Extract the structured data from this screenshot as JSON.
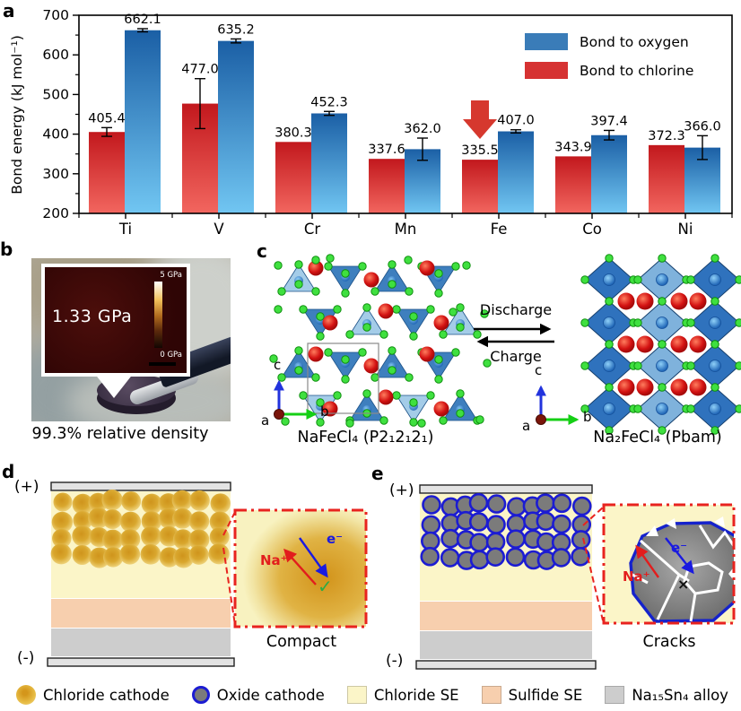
{
  "panel_letters": {
    "a": "a",
    "b": "b",
    "c": "c",
    "d": "d",
    "e": "e"
  },
  "chart_data": {
    "type": "bar",
    "categories": [
      "Ti",
      "V",
      "Cr",
      "Mn",
      "Fe",
      "Co",
      "Ni"
    ],
    "series": [
      {
        "name": "Bond to chlorine",
        "values": [
          405.4,
          477.0,
          380.3,
          337.6,
          335.5,
          343.9,
          372.3
        ],
        "errors": [
          11,
          63,
          0,
          0,
          0,
          0,
          0
        ],
        "gradient": [
          "#c2181d",
          "#f2665f"
        ]
      },
      {
        "name": "Bond to oxygen",
        "values": [
          662.1,
          635.2,
          452.3,
          362.0,
          407.0,
          397.4,
          366.0
        ],
        "errors": [
          4,
          5,
          5,
          28,
          4,
          12,
          30
        ],
        "gradient": [
          "#1b5fa5",
          "#71c6f2"
        ]
      }
    ],
    "legend": [
      {
        "label": "Bond to oxygen",
        "color": "#3a7cb8"
      },
      {
        "label": "Bond to chlorine",
        "color": "#d63232"
      }
    ],
    "ylabel": "Bond energy (kJ mol⁻¹)",
    "ylim": [
      200,
      700
    ],
    "yticks": [
      200,
      300,
      400,
      500,
      600,
      700
    ],
    "grid": false,
    "legend_position": "top-right",
    "annotation": {
      "type": "down-arrow",
      "category": "Fe",
      "series": "Bond to chlorine",
      "color": "#d6382e"
    }
  },
  "panel_b": {
    "inset": {
      "pressure_label": "1.33 GPa",
      "scale_max": "5 GPa",
      "scale_min": "0 GPa"
    },
    "caption": "99.3% relative density"
  },
  "panel_c": {
    "left_label": "NaFeCl₄ (P2₁2₁2₁)",
    "right_label": "Na₂FeCl₄ (Pbam)",
    "forward_label": "Discharge",
    "backward_label": "Charge",
    "axes": {
      "up": "c",
      "right": "b",
      "out": "a"
    }
  },
  "panel_d": {
    "plus": "(+)",
    "minus": "(-)",
    "inset_label": "Compact",
    "na_label": "Na⁺",
    "e_label": "e⁻",
    "check": "✓"
  },
  "panel_e": {
    "plus": "(+)",
    "minus": "(-)",
    "inset_label": "Cracks",
    "na_label": "Na⁺",
    "e_label": "e⁻",
    "cross": "×"
  },
  "colors": {
    "chloride_cathode_core": "#cf941c",
    "chloride_cathode_rim": "#eed27a",
    "oxide_cathode_fill": "#7b7b7b",
    "oxide_cathode_border": "#1c1cd2",
    "chloride_se": "#fbf5c8",
    "sulfide_se": "#f7cfae",
    "alloy": "#cdcdcd",
    "electrode": "#e3e3e3",
    "inset_border": "#e8231f",
    "na_color": "#e21d1d",
    "e_color": "#1a1ae0",
    "check_color": "#2daa44"
  },
  "bottom_legend": {
    "items": [
      {
        "label": "Chloride cathode",
        "shape": "gold-circle",
        "color": "#d4961b"
      },
      {
        "label": "Oxide cathode",
        "shape": "ring-circle",
        "color": "#7b7b7b",
        "border": "#1c1cd2"
      },
      {
        "label": "Chloride SE",
        "shape": "square",
        "color": "#fbf5c8"
      },
      {
        "label": "Sulfide SE",
        "shape": "square",
        "color": "#f7cfae"
      },
      {
        "label": "Na₁₅Sn₄ alloy",
        "shape": "square",
        "color": "#cdcdcd"
      }
    ]
  }
}
